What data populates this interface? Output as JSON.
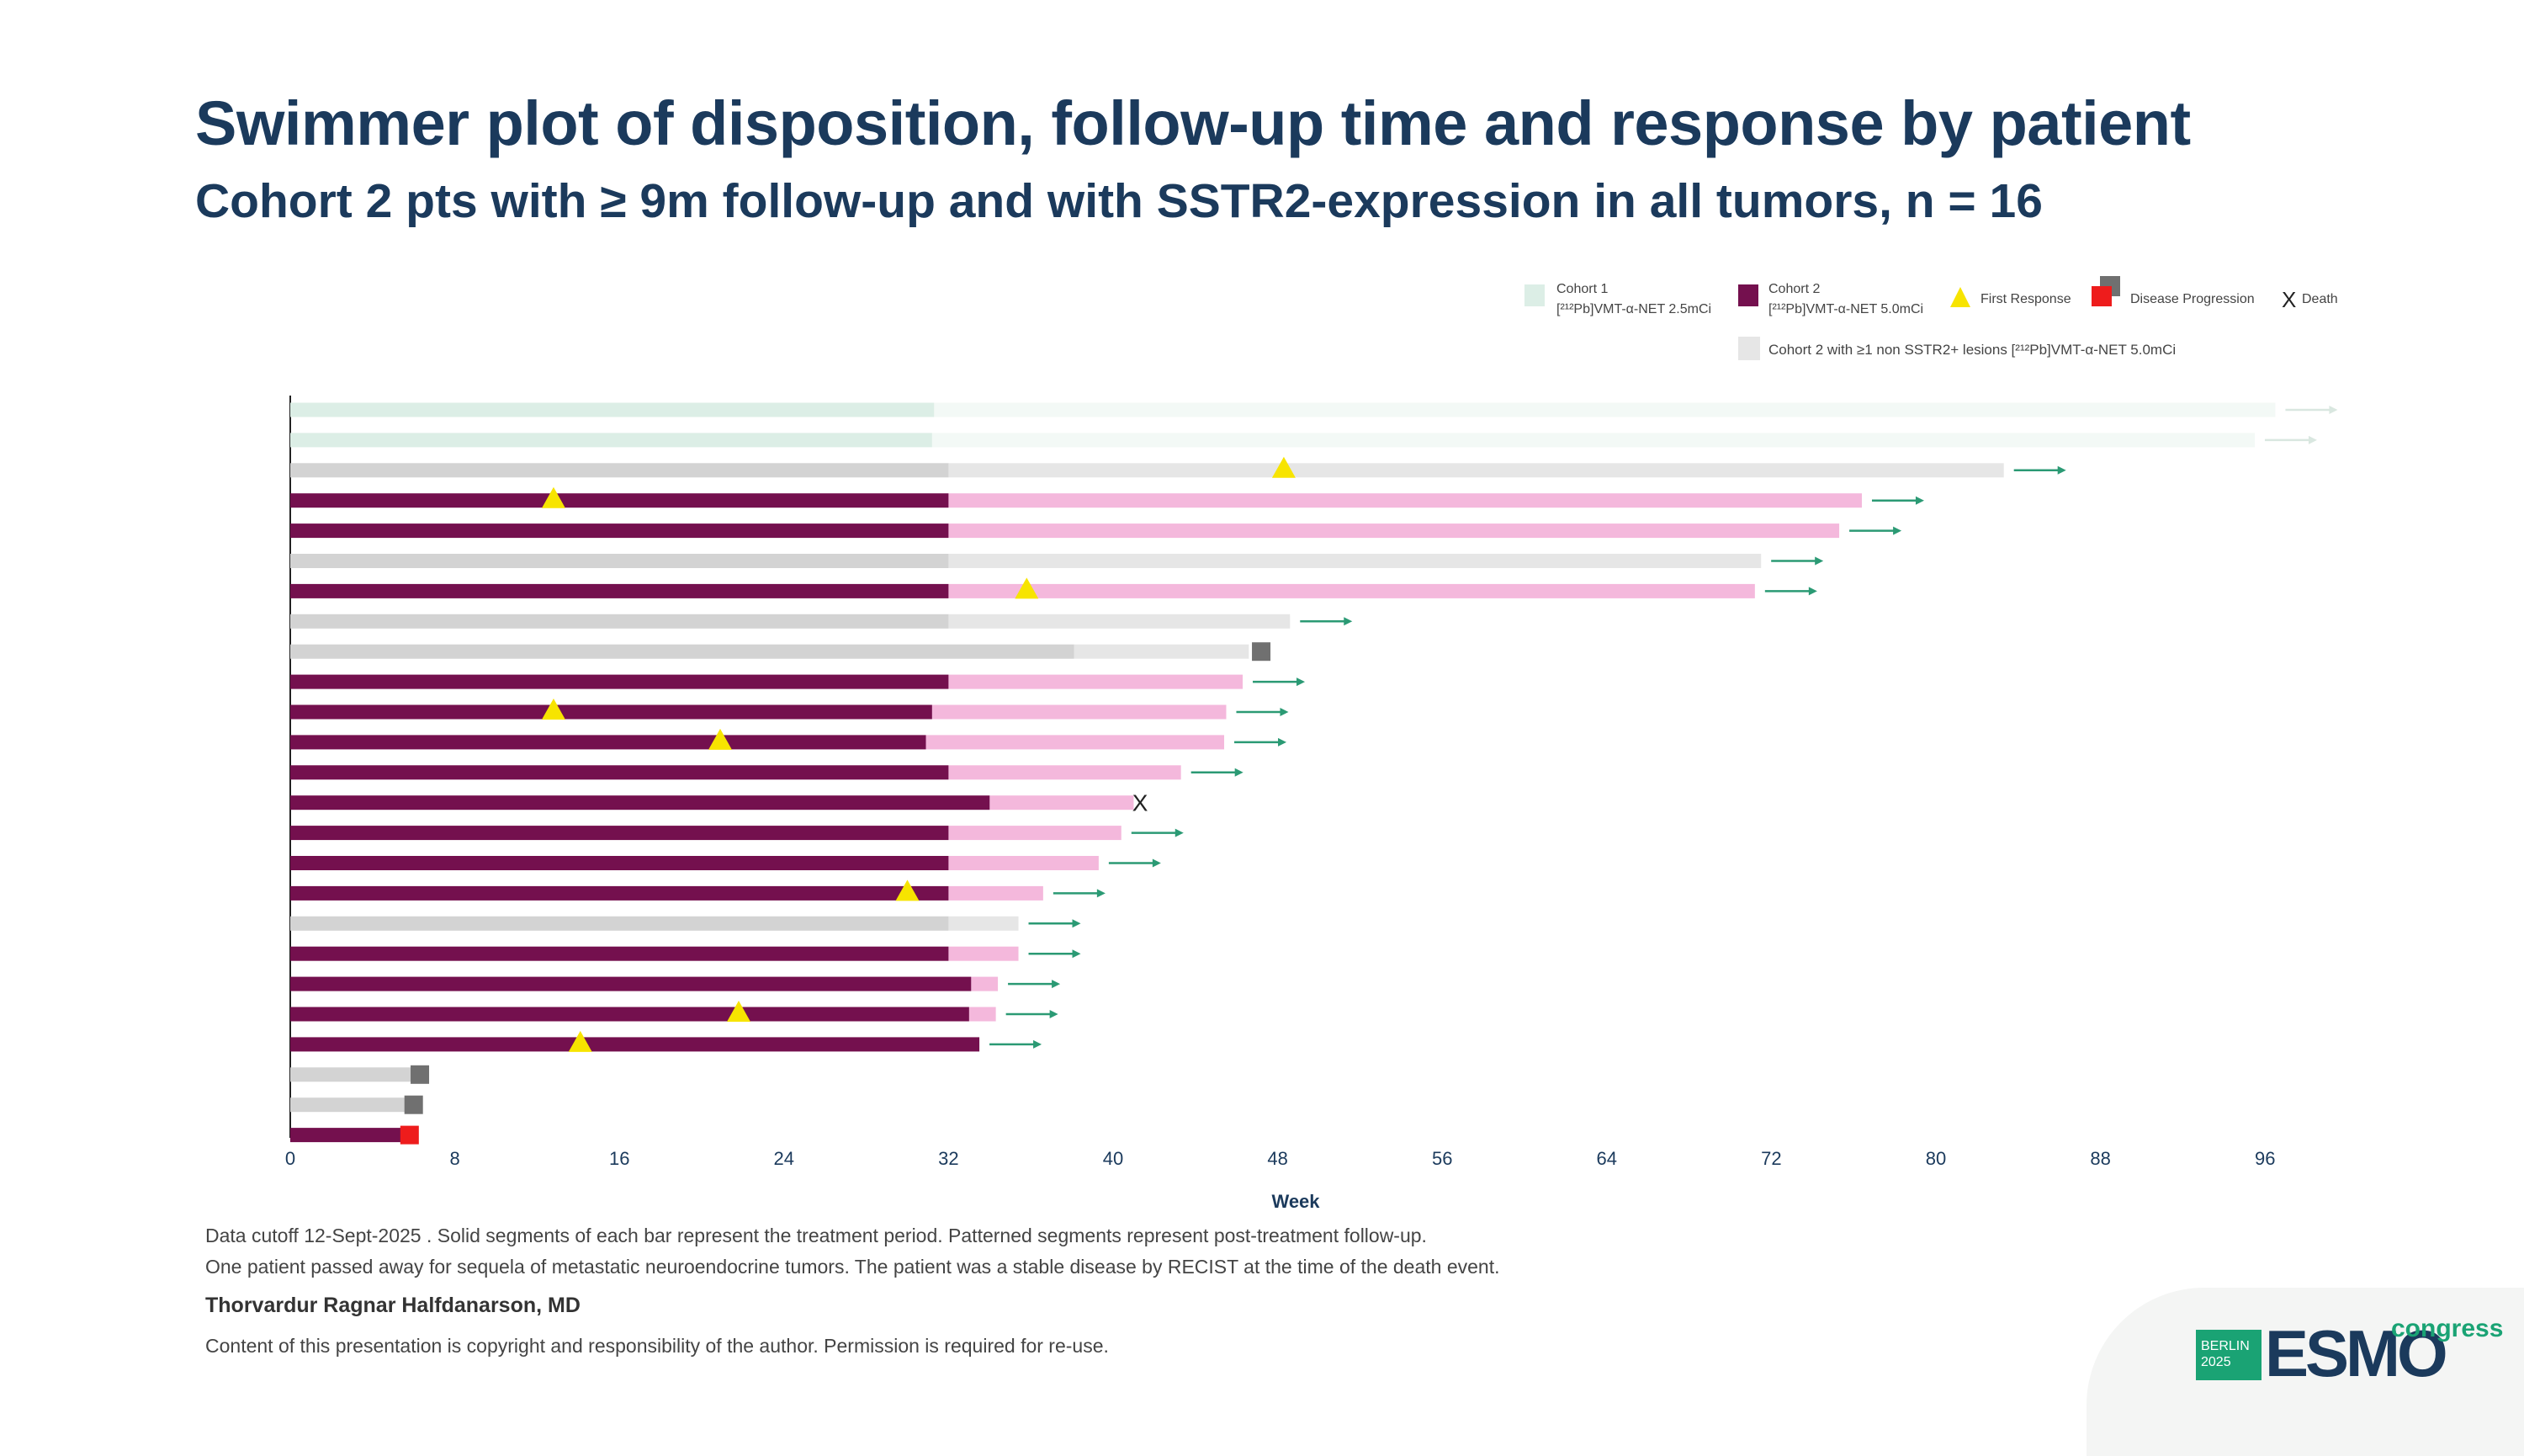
{
  "title": "Swimmer plot of disposition, follow-up time and response by patient",
  "subtitle": "Cohort 2 pts with ≥ 9m follow-up and with SSTR2-expression in all tumors, n = 16",
  "legend": {
    "cohort1_line1": "Cohort 1",
    "cohort1_line2": "[²¹²Pb]VMT-α-NET 2.5mCi",
    "cohort2_line1": "Cohort 2",
    "cohort2_line2": "[²¹²Pb]VMT-α-NET 5.0mCi",
    "first_response": "First Response",
    "disease_progression": "Disease Progression",
    "death_symbol": "X",
    "death": "Death",
    "cohort2_nonsstr": "Cohort 2 with ≥1 non SSTR2+ lesions [²¹²Pb]VMT-α-NET 5.0mCi"
  },
  "colors": {
    "cohort1_solid": "#dceee6",
    "cohort1_follow": "#f3f9f6",
    "cohort2_solid": "#74104e",
    "cohort2_follow": "#f4b8dc",
    "nonsstr_solid": "#d3d3d3",
    "nonsstr_follow": "#e6e6e6",
    "response": "#f7e400",
    "progression_gray": "#707070",
    "progression_red": "#ee1c1c",
    "arrow": "#2b9a74",
    "title": "#1b3a5c"
  },
  "chart_data": {
    "type": "swimmer",
    "xlabel": "Week",
    "xlim": [
      0,
      100
    ],
    "xticks": [
      0,
      8,
      16,
      24,
      32,
      40,
      48,
      56,
      64,
      72,
      80,
      88,
      96
    ],
    "patients": [
      {
        "group": "cohort1",
        "treatment_end": 31.3,
        "followup_end": 96.5,
        "ongoing": true
      },
      {
        "group": "cohort1",
        "treatment_end": 31.2,
        "followup_end": 95.5,
        "ongoing": true
      },
      {
        "group": "nonsstr",
        "treatment_end": 32,
        "followup_end": 83.3,
        "ongoing": true,
        "response": 48.3
      },
      {
        "group": "cohort2",
        "treatment_end": 32,
        "followup_end": 76.4,
        "ongoing": true,
        "response": 12.8
      },
      {
        "group": "cohort2",
        "treatment_end": 32,
        "followup_end": 75.3,
        "ongoing": true
      },
      {
        "group": "nonsstr",
        "treatment_end": 32,
        "followup_end": 71.5,
        "ongoing": true
      },
      {
        "group": "cohort2",
        "treatment_end": 32,
        "followup_end": 71.2,
        "ongoing": true,
        "response": 35.8
      },
      {
        "group": "nonsstr",
        "treatment_end": 32,
        "followup_end": 48.6,
        "ongoing": true
      },
      {
        "group": "nonsstr",
        "treatment_end": 38.1,
        "followup_end": 46.6,
        "ongoing": false,
        "progression": 47.2,
        "progression_color": "gray"
      },
      {
        "group": "cohort2",
        "treatment_end": 32,
        "followup_end": 46.3,
        "ongoing": true
      },
      {
        "group": "cohort2",
        "treatment_end": 31.2,
        "followup_end": 45.5,
        "ongoing": true,
        "response": 12.8
      },
      {
        "group": "cohort2",
        "treatment_end": 30.9,
        "followup_end": 45.4,
        "ongoing": true,
        "response": 20.9
      },
      {
        "group": "cohort2",
        "treatment_end": 32,
        "followup_end": 43.3,
        "ongoing": true
      },
      {
        "group": "cohort2",
        "treatment_end": 34,
        "followup_end": 41.0,
        "ongoing": false,
        "death": 41.3
      },
      {
        "group": "cohort2",
        "treatment_end": 32,
        "followup_end": 40.4,
        "ongoing": true
      },
      {
        "group": "cohort2",
        "treatment_end": 32,
        "followup_end": 39.3,
        "ongoing": true
      },
      {
        "group": "cohort2",
        "treatment_end": 32,
        "followup_end": 36.6,
        "ongoing": true,
        "response": 30.0
      },
      {
        "group": "nonsstr",
        "treatment_end": 32,
        "followup_end": 35.4,
        "ongoing": true
      },
      {
        "group": "cohort2",
        "treatment_end": 32,
        "followup_end": 35.4,
        "ongoing": true
      },
      {
        "group": "cohort2",
        "treatment_end": 33.1,
        "followup_end": 34.4,
        "ongoing": true
      },
      {
        "group": "cohort2",
        "treatment_end": 33.0,
        "followup_end": 34.3,
        "ongoing": true,
        "response": 21.8
      },
      {
        "group": "cohort2",
        "treatment_end": 33.5,
        "followup_end": 33.5,
        "ongoing": true,
        "response": 14.1
      },
      {
        "group": "nonsstr",
        "treatment_end": 6.2,
        "followup_end": 6.2,
        "ongoing": false,
        "progression": 6.3,
        "progression_color": "gray"
      },
      {
        "group": "nonsstr",
        "treatment_end": 5.9,
        "followup_end": 5.9,
        "ongoing": false,
        "progression": 6.0,
        "progression_color": "gray"
      },
      {
        "group": "cohort2",
        "treatment_end": 5.6,
        "followup_end": 5.6,
        "ongoing": false,
        "progression": 5.8,
        "progression_color": "red"
      }
    ]
  },
  "notes": {
    "line1": "Data cutoff 12-Sept-2025 . Solid segments of each bar represent the treatment period. Patterned segments represent post-treatment follow-up.",
    "line2": "One patient passed away for sequela of metastatic neuroendocrine tumors. The patient was a stable disease by RECIST at the time of the death event.",
    "author": "Thorvardur Ragnar Halfdanarson, MD",
    "copyright": "Content of this presentation is copyright and responsibility of the author. Permission is required for re-use."
  },
  "logo": {
    "berlin": "BERLIN",
    "year": "2025",
    "esmo": "ESMO",
    "congress": "congress"
  }
}
